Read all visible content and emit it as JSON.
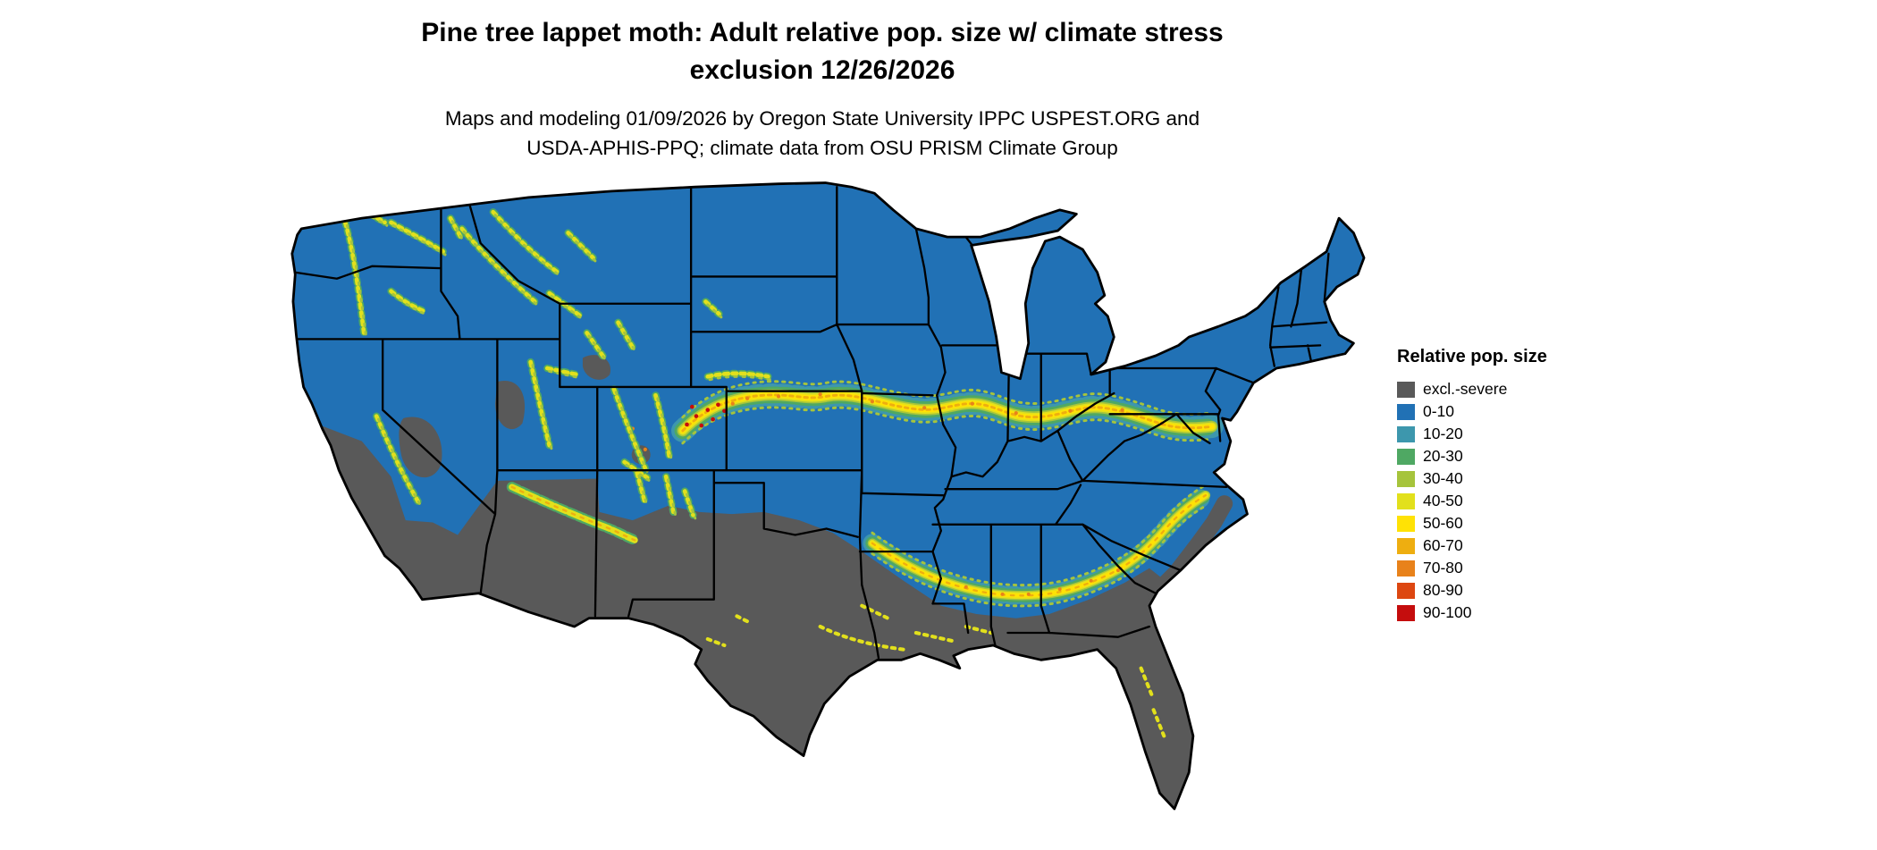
{
  "title": {
    "line1": "Pine tree lappet moth: Adult relative pop. size w/ climate stress",
    "line2": "exclusion 12/26/2026"
  },
  "subtitle": {
    "line1": "Maps and modeling 01/09/2026 by Oregon State University IPPC USPEST.ORG and",
    "line2": "USDA-APHIS-PPQ; climate data from OSU PRISM Climate Group"
  },
  "legend": {
    "title": "Relative pop. size",
    "items": [
      {
        "label": "excl.-severe",
        "color": "#595959"
      },
      {
        "label": "0-10",
        "color": "#2171b5"
      },
      {
        "label": "10-20",
        "color": "#3d97ad"
      },
      {
        "label": "20-30",
        "color": "#4fa863"
      },
      {
        "label": "30-40",
        "color": "#a6c43c"
      },
      {
        "label": "40-50",
        "color": "#e2e01c"
      },
      {
        "label": "50-60",
        "color": "#ffe205"
      },
      {
        "label": "60-70",
        "color": "#eeae10"
      },
      {
        "label": "70-80",
        "color": "#e8821b"
      },
      {
        "label": "80-90",
        "color": "#dd4711"
      },
      {
        "label": "90-100",
        "color": "#c50d0d"
      }
    ]
  },
  "map": {
    "region": "Continental United States",
    "land_color": "#2171b5",
    "excluded_color": "#595959",
    "border_color": "#000000",
    "background": "#ffffff"
  }
}
